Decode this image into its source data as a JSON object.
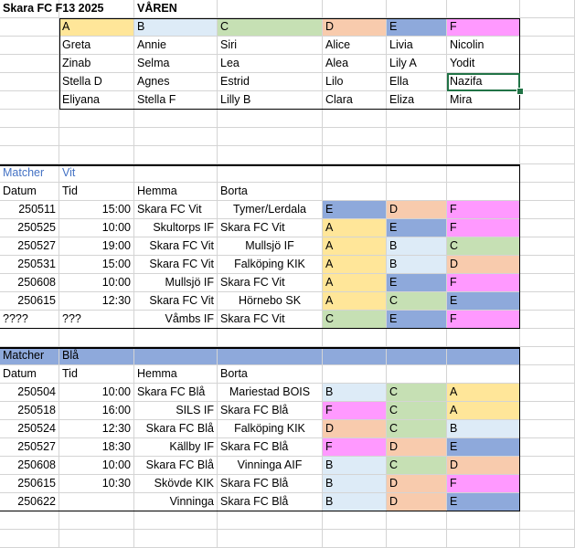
{
  "header": {
    "title": "Skara FC F13 2025",
    "season": "VÅREN"
  },
  "groups": {
    "labels": [
      "A",
      "B",
      "C",
      "D",
      "E",
      "F"
    ],
    "players": [
      [
        "Greta",
        "Annie",
        "Siri",
        "Alice",
        "Livia",
        "Nicolin"
      ],
      [
        "Zinab",
        "Selma",
        "Lea",
        "Alea",
        "Lily A",
        "Yodit"
      ],
      [
        "Stella D",
        "Agnes",
        "Estrid",
        "Lilo",
        "Ella",
        "Nazifa"
      ],
      [
        "Eliyana",
        "Stella F",
        "Lilly B",
        "Clara",
        "Eliza",
        "Mira"
      ]
    ]
  },
  "group_colors": {
    "A": "#ffe699",
    "B": "#ddebf7",
    "C": "#c6e0b4",
    "D": "#f8cbad",
    "E": "#8ea9db",
    "F": "#ff99ff"
  },
  "vit": {
    "title": "Matcher",
    "team": "Vit",
    "headers": [
      "Datum",
      "Tid",
      "Hemma",
      "Borta"
    ],
    "matches": [
      {
        "date": "250511",
        "time": "15:00",
        "home": "Skara FC Vit",
        "away": "Tymer/Lerdala",
        "g1": "E",
        "g2": "D",
        "g3": "F"
      },
      {
        "date": "250525",
        "time": "10:00",
        "home": "Skultorps IF",
        "away": "Skara FC Vit",
        "g1": "A",
        "g2": "E",
        "g3": "F"
      },
      {
        "date": "250527",
        "time": "19:00",
        "home": "Skara FC Vit",
        "away": "Mullsjö IF",
        "g1": "A",
        "g2": "B",
        "g3": "C"
      },
      {
        "date": "250531",
        "time": "15:00",
        "home": "Skara FC Vit",
        "away": "Falköping KIK",
        "g1": "A",
        "g2": "B",
        "g3": "D"
      },
      {
        "date": "250608",
        "time": "10:00",
        "home": "Mullsjö IF",
        "away": "Skara FC Vit",
        "g1": "A",
        "g2": "E",
        "g3": "F"
      },
      {
        "date": "250615",
        "time": "12:30",
        "home": "Skara FC Vit",
        "away": "Hörnebo SK",
        "g1": "A",
        "g2": "C",
        "g3": "E"
      },
      {
        "date": "????",
        "time": "???",
        "home": "Våmbs IF",
        "away": "Skara FC Vit",
        "g1": "C",
        "g2": "E",
        "g3": "F"
      }
    ]
  },
  "bla": {
    "title": "Matcher",
    "team": "Blå",
    "header_color": "#8ea9db",
    "headers": [
      "Datum",
      "Tid",
      "Hemma",
      "Borta"
    ],
    "matches": [
      {
        "date": "250504",
        "time": "10:00",
        "home": "Skara FC Blå",
        "away": "Mariestad BOIS",
        "g1": "B",
        "g2": "C",
        "g3": "A"
      },
      {
        "date": "250518",
        "time": "16:00",
        "home": "SILS IF",
        "away": "Skara FC Blå",
        "g1": "F",
        "g2": "C",
        "g3": "A"
      },
      {
        "date": "250524",
        "time": "12:30",
        "home": "Skara FC Blå",
        "away": "Falköping KIK",
        "g1": "D",
        "g2": "C",
        "g3": "B"
      },
      {
        "date": "250527",
        "time": "18:30",
        "home": "Källby IF",
        "away": "Skara FC Blå",
        "g1": "F",
        "g2": "D",
        "g3": "E"
      },
      {
        "date": "250608",
        "time": "10:00",
        "home": "Skara FC Blå",
        "away": "Vinninga AIF",
        "g1": "B",
        "g2": "C",
        "g3": "D"
      },
      {
        "date": "250615",
        "time": "10:30",
        "home": "Skövde KIK",
        "away": "Skara FC Blå",
        "g1": "B",
        "g2": "D",
        "g3": "F"
      },
      {
        "date": "250622",
        "time": "",
        "home": "Vinninga",
        "away": "Skara FC Blå",
        "g1": "B",
        "g2": "D",
        "g3": "E"
      }
    ]
  }
}
